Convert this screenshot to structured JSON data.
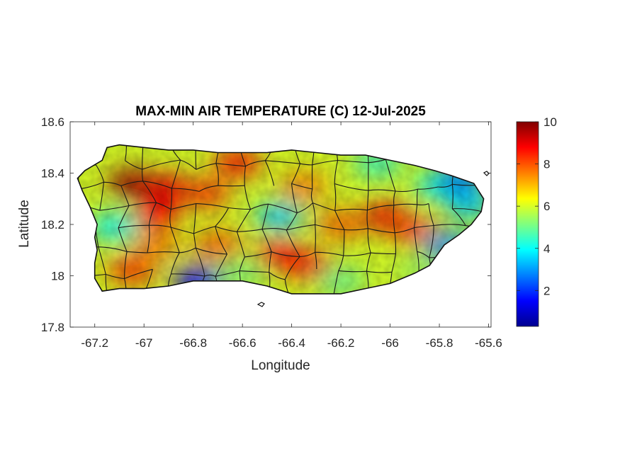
{
  "title": "MAX-MIN AIR TEMPERATURE (C) 12-Jul-2025",
  "xlabel": "Longitude",
  "ylabel": "Latitude",
  "x_ticks": [
    -67.2,
    -67,
    -66.8,
    -66.6,
    -66.4,
    -66.2,
    -66,
    -65.8,
    -65.6
  ],
  "x_tick_labels": [
    "-67.2",
    "-67",
    "-66.8",
    "-66.6",
    "-66.4",
    "-66.2",
    "-66",
    "-65.8",
    "-65.6"
  ],
  "y_ticks": [
    17.8,
    18,
    18.2,
    18.4,
    18.6
  ],
  "y_tick_labels": [
    "17.8",
    "18",
    "18.2",
    "18.4",
    "18.6"
  ],
  "xlim": [
    -67.3,
    -65.59
  ],
  "ylim": [
    17.8,
    18.6
  ],
  "colorbar": {
    "colormap": "jet",
    "limits": [
      0.3,
      10
    ],
    "ticks": [
      2,
      4,
      6,
      8,
      10
    ],
    "tick_labels": [
      "2",
      "4",
      "6",
      "8",
      "10"
    ]
  },
  "chart_data": {
    "type": "heatmap",
    "title": "MAX-MIN AIR TEMPERATURE (C) 12-Jul-2025",
    "xlabel": "Longitude",
    "ylabel": "Latitude",
    "xlim": [
      -67.3,
      -65.59
    ],
    "ylim": [
      17.8,
      18.6
    ],
    "value_range": [
      0.3,
      10
    ],
    "coastline": [
      [
        -67.27,
        18.38
      ],
      [
        -67.24,
        18.41
      ],
      [
        -67.17,
        18.45
      ],
      [
        -67.15,
        18.5
      ],
      [
        -67.1,
        18.51
      ],
      [
        -67.0,
        18.5
      ],
      [
        -66.9,
        18.49
      ],
      [
        -66.8,
        18.49
      ],
      [
        -66.7,
        18.48
      ],
      [
        -66.6,
        18.48
      ],
      [
        -66.5,
        18.48
      ],
      [
        -66.4,
        18.49
      ],
      [
        -66.3,
        18.48
      ],
      [
        -66.2,
        18.47
      ],
      [
        -66.1,
        18.47
      ],
      [
        -66.0,
        18.45
      ],
      [
        -65.9,
        18.43
      ],
      [
        -65.82,
        18.41
      ],
      [
        -65.75,
        18.39
      ],
      [
        -65.66,
        18.36
      ],
      [
        -65.62,
        18.3
      ],
      [
        -65.63,
        18.25
      ],
      [
        -65.67,
        18.2
      ],
      [
        -65.72,
        18.16
      ],
      [
        -65.78,
        18.12
      ],
      [
        -65.84,
        18.04
      ],
      [
        -65.9,
        18.01
      ],
      [
        -66.0,
        17.97
      ],
      [
        -66.1,
        17.95
      ],
      [
        -66.2,
        17.93
      ],
      [
        -66.3,
        17.93
      ],
      [
        -66.4,
        17.93
      ],
      [
        -66.5,
        17.96
      ],
      [
        -66.6,
        17.98
      ],
      [
        -66.7,
        17.98
      ],
      [
        -66.8,
        17.98
      ],
      [
        -66.9,
        17.96
      ],
      [
        -67.0,
        17.95
      ],
      [
        -67.1,
        17.95
      ],
      [
        -67.17,
        17.94
      ],
      [
        -67.2,
        17.99
      ],
      [
        -67.2,
        18.05
      ],
      [
        -67.19,
        18.1
      ],
      [
        -67.2,
        18.15
      ],
      [
        -67.19,
        18.2
      ],
      [
        -67.22,
        18.27
      ],
      [
        -67.25,
        18.33
      ]
    ],
    "temperature_centers": [
      {
        "lon": -67.05,
        "lat": 18.36,
        "value": 9.8
      },
      {
        "lon": -66.9,
        "lat": 18.34,
        "value": 9.0
      },
      {
        "lon": -66.95,
        "lat": 18.24,
        "value": 8.8
      },
      {
        "lon": -66.62,
        "lat": 18.44,
        "value": 8.5
      },
      {
        "lon": -66.75,
        "lat": 18.32,
        "value": 8.2
      },
      {
        "lon": -66.45,
        "lat": 18.08,
        "value": 8.8
      },
      {
        "lon": -66.33,
        "lat": 18.04,
        "value": 8.5
      },
      {
        "lon": -66.7,
        "lat": 18.12,
        "value": 7.8
      },
      {
        "lon": -67.05,
        "lat": 18.02,
        "value": 8.2
      },
      {
        "lon": -66.95,
        "lat": 18.12,
        "value": 7.5
      },
      {
        "lon": -66.02,
        "lat": 18.23,
        "value": 9.0
      },
      {
        "lon": -66.2,
        "lat": 18.2,
        "value": 7.8
      },
      {
        "lon": -66.35,
        "lat": 18.35,
        "value": 7.5
      },
      {
        "lon": -65.92,
        "lat": 18.18,
        "value": 8.0
      },
      {
        "lon": -66.45,
        "lat": 18.23,
        "value": 3.5
      },
      {
        "lon": -67.12,
        "lat": 18.19,
        "value": 4.0
      },
      {
        "lon": -65.8,
        "lat": 18.35,
        "value": 4.0
      },
      {
        "lon": -65.68,
        "lat": 18.28,
        "value": 3.5
      },
      {
        "lon": -65.72,
        "lat": 18.38,
        "value": 2.8
      },
      {
        "lon": -65.77,
        "lat": 18.12,
        "value": 3.0
      },
      {
        "lon": -66.78,
        "lat": 17.98,
        "value": 1.5
      },
      {
        "lon": -66.05,
        "lat": 18.44,
        "value": 4.5
      },
      {
        "lon": -66.6,
        "lat": 18.01,
        "value": 5.2
      },
      {
        "lon": -66.2,
        "lat": 17.98,
        "value": 5.0
      },
      {
        "lon": -65.88,
        "lat": 18.02,
        "value": 5.5
      }
    ]
  }
}
